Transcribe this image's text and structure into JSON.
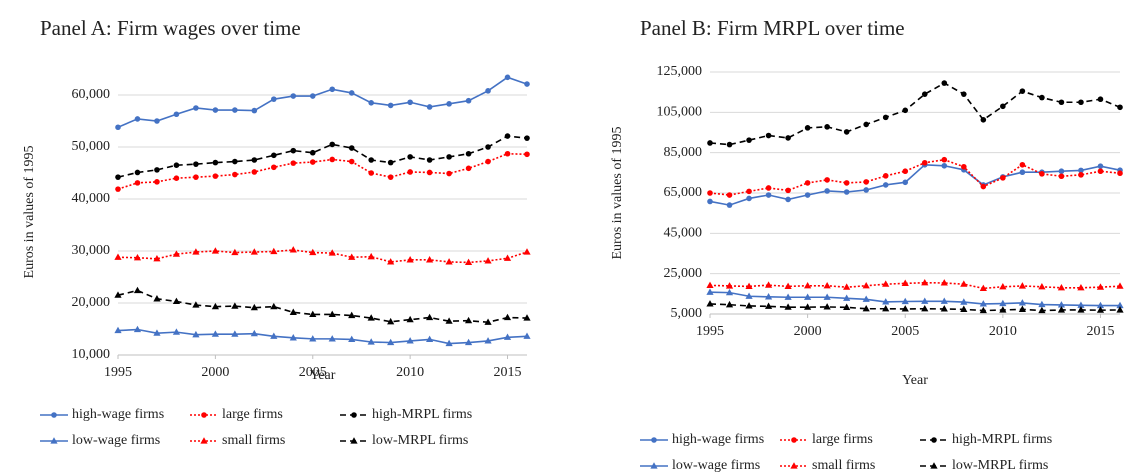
{
  "chart_data": [
    {
      "type": "line",
      "title": "Panel A: Firm wages over time",
      "x_label": "Year",
      "y_label": "Euros in values of 1995",
      "x": [
        1995,
        1996,
        1997,
        1998,
        1999,
        2000,
        2001,
        2002,
        2003,
        2004,
        2005,
        2006,
        2007,
        2008,
        2009,
        2010,
        2011,
        2012,
        2013,
        2014,
        2015,
        2016
      ],
      "xlim": [
        1995,
        2016
      ],
      "xticks": [
        1995,
        2000,
        2005,
        2010,
        2015
      ],
      "ylim": [
        10000,
        65000
      ],
      "yticks": [
        {
          "value": 10000,
          "label": "10,000"
        },
        {
          "value": 20000,
          "label": "20,000"
        },
        {
          "value": 30000,
          "label": "30,000"
        },
        {
          "value": 40000,
          "label": "40,000"
        },
        {
          "value": 50000,
          "label": "50,000"
        },
        {
          "value": 60000,
          "label": "60,000"
        }
      ],
      "grid": true,
      "series": [
        {
          "name": "high-wage firms",
          "color": "#4472c4",
          "dash": "solid",
          "marker": "circle",
          "values": [
            53800,
            55400,
            55000,
            56300,
            57500,
            57100,
            57100,
            57000,
            59200,
            59800,
            59800,
            61100,
            60400,
            58500,
            58000,
            58600,
            57700,
            58300,
            58900,
            60800,
            63400,
            62100
          ]
        },
        {
          "name": "large firms",
          "color": "#ff0000",
          "dash": "dotted",
          "marker": "circle",
          "values": [
            41900,
            43100,
            43300,
            44000,
            44200,
            44400,
            44700,
            45200,
            46100,
            46900,
            47100,
            47600,
            47200,
            45000,
            44200,
            45200,
            45100,
            44900,
            45900,
            47200,
            48700,
            48600
          ]
        },
        {
          "name": "high-MRPL firms",
          "color": "#000000",
          "dash": "dashed",
          "marker": "circle",
          "values": [
            44200,
            45100,
            45600,
            46500,
            46700,
            47000,
            47200,
            47500,
            48400,
            49300,
            48900,
            50500,
            49800,
            47500,
            47000,
            48100,
            47500,
            48100,
            48700,
            50000,
            52100,
            51700
          ]
        },
        {
          "name": "low-wage firms",
          "color": "#4472c4",
          "dash": "solid",
          "marker": "triangle",
          "values": [
            14700,
            14900,
            14200,
            14400,
            13900,
            14000,
            14000,
            14100,
            13600,
            13300,
            13100,
            13100,
            13000,
            12500,
            12400,
            12700,
            13000,
            12200,
            12400,
            12700,
            13400,
            13600
          ]
        },
        {
          "name": "small firms",
          "color": "#ff0000",
          "dash": "dotted",
          "marker": "triangle",
          "values": [
            28800,
            28700,
            28500,
            29400,
            29800,
            30000,
            29700,
            29800,
            29900,
            30200,
            29700,
            29600,
            28800,
            28900,
            27900,
            28300,
            28300,
            27900,
            27800,
            28100,
            28600,
            29800
          ]
        },
        {
          "name": "low-MRPL firms",
          "color": "#000000",
          "dash": "dashed",
          "marker": "triangle",
          "values": [
            21500,
            22400,
            20800,
            20300,
            19600,
            19300,
            19400,
            19100,
            19300,
            18200,
            17800,
            17800,
            17600,
            17100,
            16400,
            16800,
            17200,
            16500,
            16600,
            16300,
            17200,
            17100
          ]
        }
      ]
    },
    {
      "type": "line",
      "title": "Panel B: Firm MRPL over time",
      "x_label": "Year",
      "y_label": "Euros in values of 1995",
      "x": [
        1995,
        1996,
        1997,
        1998,
        1999,
        2000,
        2001,
        2002,
        2003,
        2004,
        2005,
        2006,
        2007,
        2008,
        2009,
        2010,
        2011,
        2012,
        2013,
        2014,
        2015,
        2016
      ],
      "xlim": [
        1995,
        2016
      ],
      "xticks": [
        1995,
        2000,
        2005,
        2010,
        2015
      ],
      "ylim": [
        5000,
        125000
      ],
      "yticks": [
        {
          "value": 5000,
          "label": "5,000"
        },
        {
          "value": 25000,
          "label": "25,000"
        },
        {
          "value": 45000,
          "label": "45,000"
        },
        {
          "value": 65000,
          "label": "65,000"
        },
        {
          "value": 85000,
          "label": "85,000"
        },
        {
          "value": 105000,
          "label": "105,000"
        },
        {
          "value": 125000,
          "label": "125,000"
        }
      ],
      "grid": true,
      "series": [
        {
          "name": "high-wage firms",
          "color": "#4472c4",
          "dash": "solid",
          "marker": "circle",
          "values": [
            60800,
            59000,
            62300,
            64000,
            61800,
            64000,
            66000,
            65500,
            66500,
            69000,
            70300,
            79000,
            78500,
            76500,
            69000,
            73000,
            75300,
            75300,
            75800,
            76200,
            78300,
            76300
          ]
        },
        {
          "name": "large firms",
          "color": "#ff0000",
          "dash": "dotted",
          "marker": "circle",
          "values": [
            65000,
            64000,
            65800,
            67500,
            66300,
            70000,
            71500,
            70000,
            70500,
            73500,
            75800,
            80000,
            81500,
            78000,
            68200,
            72500,
            79000,
            74500,
            73300,
            74000,
            75800,
            74800
          ]
        },
        {
          "name": "high-MRPL firms",
          "color": "#000000",
          "dash": "dashed",
          "marker": "circle",
          "values": [
            89800,
            89000,
            91200,
            93500,
            92300,
            97300,
            97800,
            95300,
            99000,
            102500,
            106000,
            114000,
            119500,
            114000,
            101300,
            108000,
            115500,
            112300,
            110000,
            110000,
            111500,
            107500
          ]
        },
        {
          "name": "low-wage firms",
          "color": "#4472c4",
          "dash": "solid",
          "marker": "triangle",
          "values": [
            15800,
            15600,
            13800,
            13500,
            13300,
            13300,
            13300,
            12800,
            12300,
            11000,
            11200,
            11300,
            11300,
            10900,
            10000,
            10200,
            10500,
            9700,
            9500,
            9300,
            9200,
            9200
          ]
        },
        {
          "name": "small firms",
          "color": "#ff0000",
          "dash": "dotted",
          "marker": "triangle",
          "values": [
            19200,
            18900,
            18700,
            19300,
            18700,
            19000,
            19000,
            18300,
            19000,
            19800,
            20200,
            20500,
            20400,
            19800,
            17700,
            18500,
            18900,
            18500,
            18000,
            18000,
            18300,
            18800
          ]
        },
        {
          "name": "low-MRPL firms",
          "color": "#000000",
          "dash": "dashed",
          "marker": "triangle",
          "values": [
            10000,
            9600,
            9000,
            8800,
            8400,
            8400,
            8500,
            8300,
            7600,
            7600,
            7500,
            7600,
            7500,
            7300,
            6700,
            7000,
            7300,
            6700,
            7000,
            7000,
            6900,
            7000
          ]
        }
      ]
    }
  ]
}
